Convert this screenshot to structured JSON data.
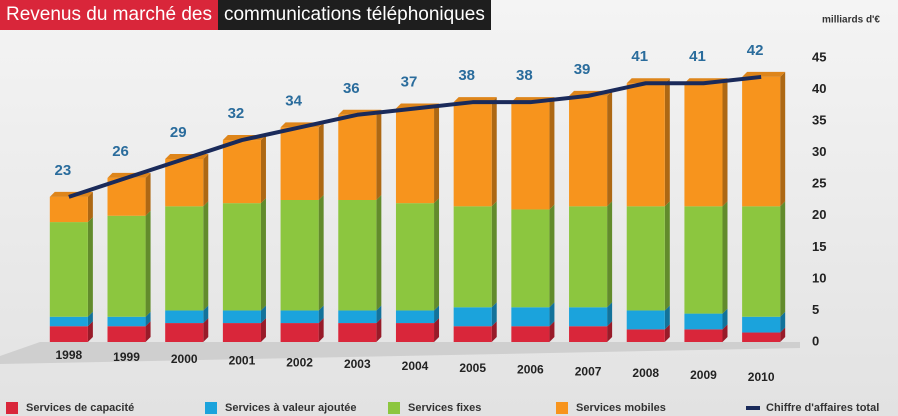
{
  "chart_data": {
    "type": "bar",
    "stacked": true,
    "title": [
      "Revenus du marché des",
      "communications téléphoniques"
    ],
    "unit_label": "milliards d'€",
    "categories": [
      "1998",
      "1999",
      "2000",
      "2001",
      "2002",
      "2003",
      "2004",
      "2005",
      "2006",
      "2007",
      "2008",
      "2009",
      "2010"
    ],
    "series": [
      {
        "name": "Services de capacité",
        "color": "#d9263a",
        "values": [
          2.5,
          2.5,
          3,
          3,
          3,
          3,
          3,
          2.5,
          2.5,
          2.5,
          2,
          2,
          1.5
        ]
      },
      {
        "name": "Services à valeur ajoutée",
        "color": "#1ba3dc",
        "values": [
          1.5,
          1.5,
          2,
          2,
          2,
          2,
          2,
          3,
          3,
          3,
          3,
          2.5,
          2.5
        ]
      },
      {
        "name": "Services fixes",
        "color": "#8cc63f",
        "values": [
          15,
          16,
          16.5,
          17,
          17.5,
          17.5,
          17,
          16,
          15.5,
          16,
          16.5,
          17,
          17.5
        ]
      },
      {
        "name": "Services mobiles",
        "color": "#f7941d",
        "values": [
          4,
          6,
          7.5,
          10,
          11.5,
          13.5,
          15,
          16.5,
          17,
          17.5,
          19.5,
          19.5,
          20.5
        ]
      },
      {
        "name": "Chiffre d'affaires total",
        "color": "#1a2a5a",
        "type": "line",
        "values": [
          23,
          26,
          29,
          32,
          34,
          36,
          37,
          38,
          38,
          39,
          41,
          41,
          42
        ]
      }
    ],
    "ylim": [
      0,
      45
    ],
    "yticks": [
      0,
      5,
      10,
      15,
      20,
      25,
      30,
      35,
      40,
      45
    ],
    "grid": false
  }
}
